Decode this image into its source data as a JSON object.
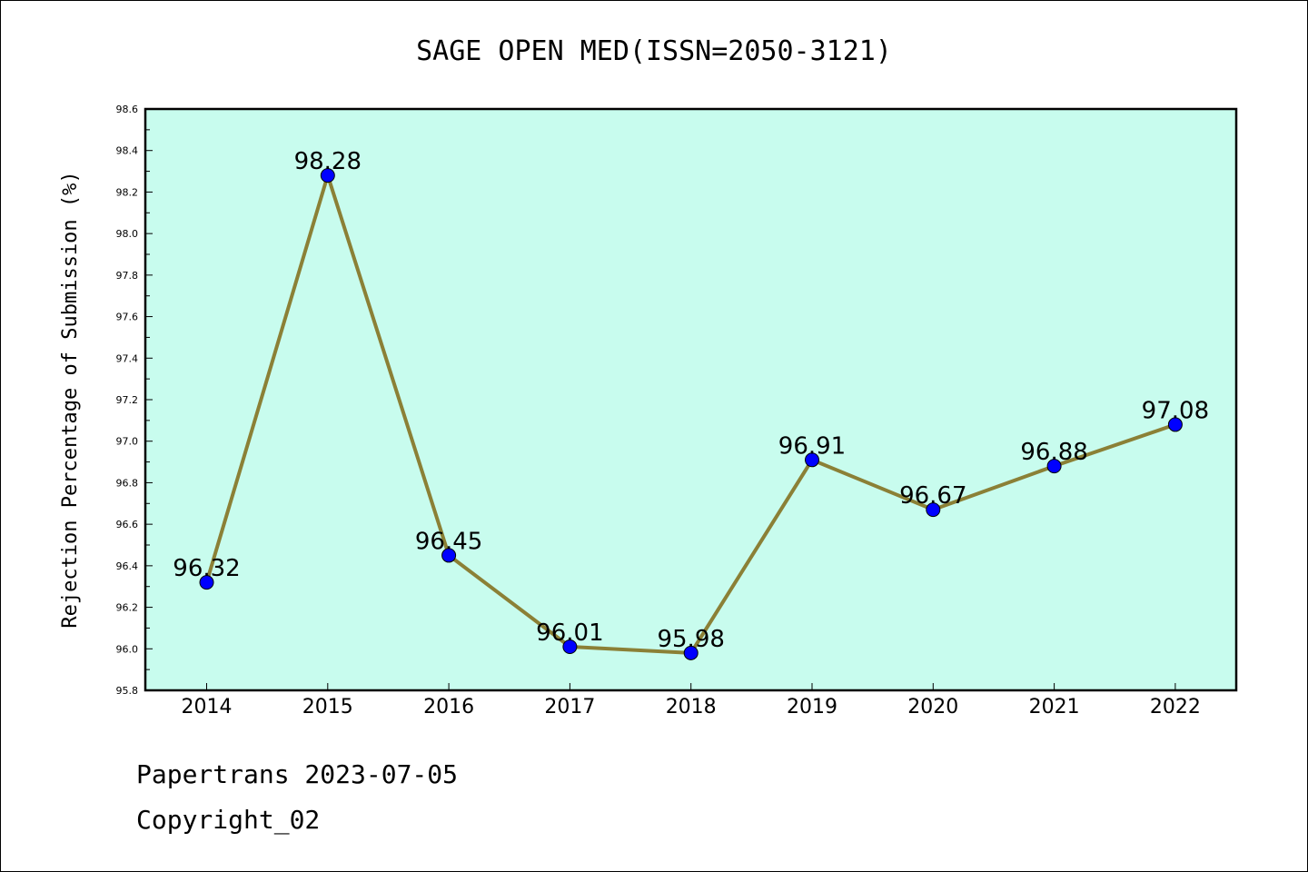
{
  "chart_data": {
    "type": "line",
    "title": "SAGE OPEN MED(ISSN=2050-3121)",
    "ylabel": "Rejection Percentage of Submission (%)",
    "xlabel": "",
    "x": [
      "2014",
      "2015",
      "2016",
      "2017",
      "2018",
      "2019",
      "2020",
      "2021",
      "2022"
    ],
    "series": [
      {
        "values": [
          96.32,
          98.28,
          96.45,
          96.01,
          95.98,
          96.91,
          96.67,
          96.88,
          97.08
        ]
      }
    ],
    "data_labels": [
      "96.32",
      "98.28",
      "96.45",
      "96.01",
      "95.98",
      "96.91",
      "96.67",
      "96.88",
      "97.08"
    ],
    "ylim": [
      95.8,
      98.6
    ],
    "yticks": [
      "95.8",
      "96.0",
      "96.2",
      "96.4",
      "96.6",
      "96.8",
      "97.0",
      "97.2",
      "97.4",
      "97.6",
      "97.8",
      "98.0",
      "98.2",
      "98.4",
      "98.6"
    ],
    "grid": false,
    "colors": {
      "plot_background": "#c8fcee",
      "line": "#8b8036",
      "marker": "#0000ff"
    }
  },
  "footer": {
    "line1": "Papertrans 2023-07-05",
    "line2": "Copyright_02"
  }
}
